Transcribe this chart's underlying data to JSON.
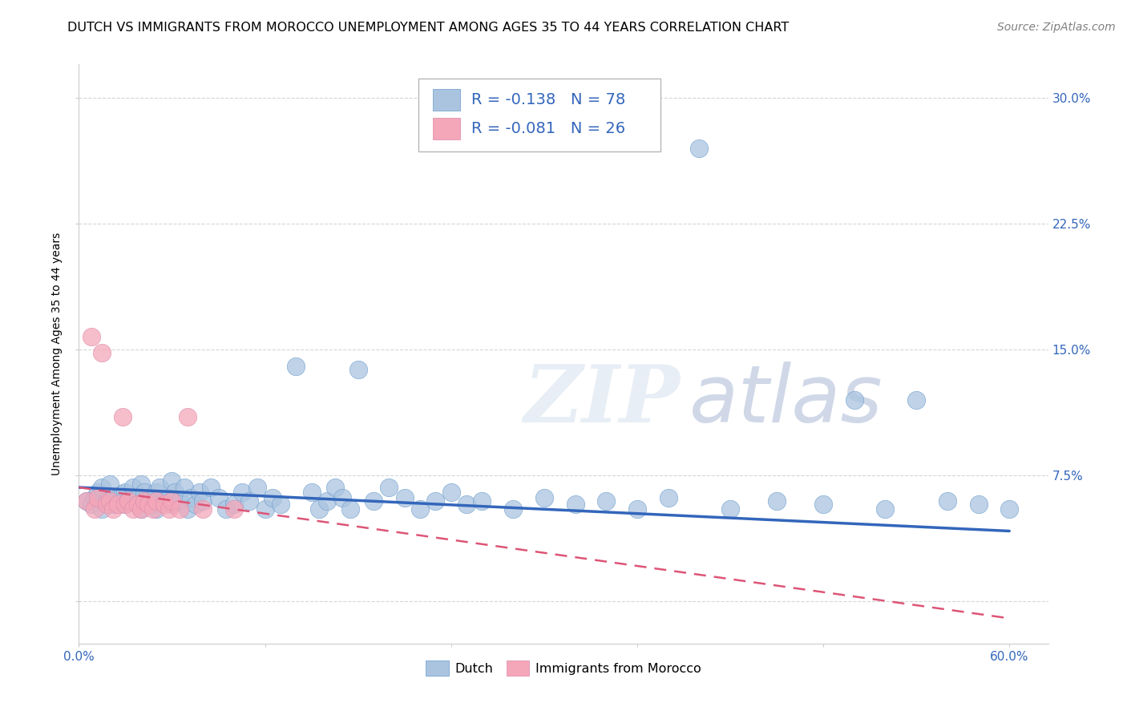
{
  "title": "DUTCH VS IMMIGRANTS FROM MOROCCO UNEMPLOYMENT AMONG AGES 35 TO 44 YEARS CORRELATION CHART",
  "source": "Source: ZipAtlas.com",
  "ylabel": "Unemployment Among Ages 35 to 44 years",
  "xlim": [
    0.0,
    0.625
  ],
  "ylim": [
    -0.025,
    0.32
  ],
  "xtick_positions": [
    0.0,
    0.12,
    0.24,
    0.36,
    0.48,
    0.6
  ],
  "xticklabels_left": "0.0%",
  "xticklabels_right": "60.0%",
  "ytick_positions": [
    0.0,
    0.075,
    0.15,
    0.225,
    0.3
  ],
  "yticklabels": [
    "",
    "7.5%",
    "15.0%",
    "22.5%",
    "30.0%"
  ],
  "dutch_color": "#aac4e0",
  "dutch_edge_color": "#6699cc",
  "morocco_color": "#f4a7b9",
  "morocco_edge_color": "#dd88aa",
  "dutch_line_color": "#3366bb",
  "morocco_line_color": "#dd5577",
  "watermark_color": "#e8eef5",
  "dutch_R": -0.138,
  "dutch_N": 78,
  "morocco_R": -0.081,
  "morocco_N": 26,
  "legend_color": "#3366bb",
  "title_fontsize": 11.5,
  "label_fontsize": 10,
  "tick_fontsize": 11,
  "legend_fontsize": 14,
  "source_fontsize": 10,
  "background_color": "#ffffff",
  "grid_color": "#cccccc",
  "axis_color": "#cccccc",
  "tick_label_color": "#3366bb",
  "dutch_x": [
    0.005,
    0.008,
    0.01,
    0.012,
    0.015,
    0.015,
    0.018,
    0.02,
    0.022,
    0.025,
    0.028,
    0.03,
    0.03,
    0.032,
    0.035,
    0.038,
    0.04,
    0.04,
    0.042,
    0.045,
    0.048,
    0.05,
    0.05,
    0.052,
    0.055,
    0.058,
    0.06,
    0.06,
    0.062,
    0.065,
    0.068,
    0.07,
    0.072,
    0.075,
    0.078,
    0.08,
    0.085,
    0.09,
    0.095,
    0.1,
    0.105,
    0.11,
    0.115,
    0.12,
    0.125,
    0.13,
    0.14,
    0.15,
    0.155,
    0.16,
    0.165,
    0.17,
    0.175,
    0.18,
    0.19,
    0.2,
    0.21,
    0.22,
    0.23,
    0.24,
    0.25,
    0.26,
    0.28,
    0.3,
    0.32,
    0.34,
    0.36,
    0.38,
    0.4,
    0.42,
    0.45,
    0.48,
    0.5,
    0.52,
    0.54,
    0.56,
    0.58,
    0.6
  ],
  "dutch_y": [
    0.06,
    0.058,
    0.062,
    0.065,
    0.055,
    0.068,
    0.06,
    0.07,
    0.058,
    0.062,
    0.064,
    0.058,
    0.065,
    0.06,
    0.068,
    0.062,
    0.055,
    0.07,
    0.065,
    0.06,
    0.058,
    0.055,
    0.065,
    0.068,
    0.06,
    0.062,
    0.058,
    0.072,
    0.065,
    0.06,
    0.068,
    0.055,
    0.062,
    0.058,
    0.065,
    0.06,
    0.068,
    0.062,
    0.055,
    0.058,
    0.065,
    0.06,
    0.068,
    0.055,
    0.062,
    0.058,
    0.14,
    0.065,
    0.055,
    0.06,
    0.068,
    0.062,
    0.055,
    0.138,
    0.06,
    0.068,
    0.062,
    0.055,
    0.06,
    0.065,
    0.058,
    0.06,
    0.055,
    0.062,
    0.058,
    0.06,
    0.055,
    0.062,
    0.27,
    0.055,
    0.06,
    0.058,
    0.12,
    0.055,
    0.12,
    0.06,
    0.058,
    0.055
  ],
  "morocco_x": [
    0.005,
    0.008,
    0.01,
    0.012,
    0.015,
    0.018,
    0.02,
    0.022,
    0.025,
    0.028,
    0.03,
    0.032,
    0.035,
    0.038,
    0.04,
    0.042,
    0.045,
    0.048,
    0.05,
    0.055,
    0.058,
    0.06,
    0.065,
    0.07,
    0.08,
    0.1
  ],
  "morocco_y": [
    0.06,
    0.158,
    0.055,
    0.062,
    0.148,
    0.058,
    0.06,
    0.055,
    0.058,
    0.11,
    0.058,
    0.06,
    0.055,
    0.058,
    0.055,
    0.06,
    0.058,
    0.055,
    0.06,
    0.058,
    0.055,
    0.06,
    0.055,
    0.11,
    0.055,
    0.055
  ],
  "dutch_trend_x": [
    0.0,
    0.6
  ],
  "dutch_trend_y_start": 0.068,
  "dutch_trend_y_end": 0.042,
  "morocco_trend_x": [
    0.0,
    0.6
  ],
  "morocco_trend_y_start": 0.068,
  "morocco_trend_y_end": -0.01
}
